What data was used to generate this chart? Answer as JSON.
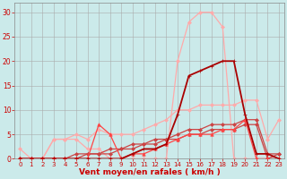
{
  "background_color": "#cbeaea",
  "grid_color": "#aaaaaa",
  "xlabel": "Vent moyen/en rafales ( km/h )",
  "xlabel_color": "#cc0000",
  "xlabel_fontsize": 6.5,
  "xtick_fontsize": 5,
  "ytick_fontsize": 5.5,
  "ytick_color": "#cc0000",
  "xtick_color": "#cc0000",
  "xlim": [
    -0.5,
    23.5
  ],
  "ylim": [
    0,
    32
  ],
  "yticks": [
    0,
    5,
    10,
    15,
    20,
    25,
    30
  ],
  "xticks": [
    0,
    1,
    2,
    3,
    4,
    5,
    6,
    7,
    8,
    9,
    10,
    11,
    12,
    13,
    14,
    15,
    16,
    17,
    18,
    19,
    20,
    21,
    22,
    23
  ],
  "series": [
    {
      "x": [
        0,
        1,
        2,
        3,
        4,
        5,
        6,
        7,
        8,
        9,
        10,
        11,
        12,
        13,
        14,
        15,
        16,
        17,
        18,
        19,
        20,
        21,
        22,
        23
      ],
      "y": [
        0,
        0,
        0,
        4,
        4,
        4,
        2,
        2,
        0,
        0,
        0,
        0,
        0,
        0,
        20,
        28,
        30,
        30,
        27,
        0,
        0,
        0,
        0,
        0
      ],
      "color": "#ffaaaa",
      "linewidth": 0.9,
      "marker": "D",
      "markersize": 2.0,
      "zorder": 2
    },
    {
      "x": [
        0,
        1,
        2,
        3,
        4,
        5,
        6,
        7,
        8,
        9,
        10,
        11,
        12,
        13,
        14,
        15,
        16,
        17,
        18,
        19,
        20,
        21,
        22,
        23
      ],
      "y": [
        2,
        0,
        0,
        4,
        4,
        5,
        4,
        6,
        5,
        5,
        5,
        6,
        7,
        8,
        10,
        10,
        11,
        11,
        11,
        11,
        12,
        12,
        4,
        8
      ],
      "color": "#ffaaaa",
      "linewidth": 0.9,
      "marker": "D",
      "markersize": 2.0,
      "zorder": 2
    },
    {
      "x": [
        0,
        1,
        2,
        3,
        4,
        5,
        6,
        7,
        8,
        9,
        10,
        11,
        12,
        13,
        14,
        15,
        16,
        17,
        18,
        19,
        20,
        21,
        22,
        23
      ],
      "y": [
        0,
        0,
        0,
        0,
        0,
        1,
        1,
        1,
        2,
        2,
        3,
        3,
        4,
        4,
        5,
        6,
        6,
        7,
        7,
        7,
        8,
        8,
        1,
        1
      ],
      "color": "#cc4444",
      "linewidth": 0.9,
      "marker": "D",
      "markersize": 2.0,
      "zorder": 3
    },
    {
      "x": [
        0,
        1,
        2,
        3,
        4,
        5,
        6,
        7,
        8,
        9,
        10,
        11,
        12,
        13,
        14,
        15,
        16,
        17,
        18,
        19,
        20,
        21,
        22,
        23
      ],
      "y": [
        0,
        0,
        0,
        0,
        0,
        0,
        1,
        1,
        1,
        2,
        2,
        3,
        3,
        4,
        4,
        5,
        5,
        6,
        6,
        6,
        7,
        7,
        0,
        1
      ],
      "color": "#cc4444",
      "linewidth": 0.9,
      "marker": "D",
      "markersize": 2.0,
      "zorder": 3
    },
    {
      "x": [
        0,
        1,
        2,
        3,
        4,
        5,
        6,
        7,
        8,
        9,
        10,
        11,
        12,
        13,
        14,
        15,
        16,
        17,
        18,
        19,
        20,
        21,
        22,
        23
      ],
      "y": [
        0,
        0,
        0,
        0,
        0,
        0,
        0,
        7,
        5,
        0,
        1,
        1,
        2,
        3,
        4,
        5,
        5,
        5,
        6,
        6,
        8,
        0,
        0,
        0
      ],
      "color": "#ff4444",
      "linewidth": 0.9,
      "marker": "^",
      "markersize": 2.5,
      "zorder": 4
    },
    {
      "x": [
        0,
        1,
        2,
        3,
        4,
        5,
        6,
        7,
        8,
        9,
        10,
        11,
        12,
        13,
        14,
        15,
        16,
        17,
        18,
        19,
        20,
        21,
        22,
        23
      ],
      "y": [
        0,
        0,
        0,
        0,
        0,
        0,
        0,
        0,
        0,
        0,
        1,
        2,
        2,
        3,
        9,
        17,
        18,
        19,
        20,
        20,
        9,
        1,
        1,
        0
      ],
      "color": "#aa0000",
      "linewidth": 1.3,
      "marker": "+",
      "markersize": 3.5,
      "zorder": 5
    }
  ]
}
